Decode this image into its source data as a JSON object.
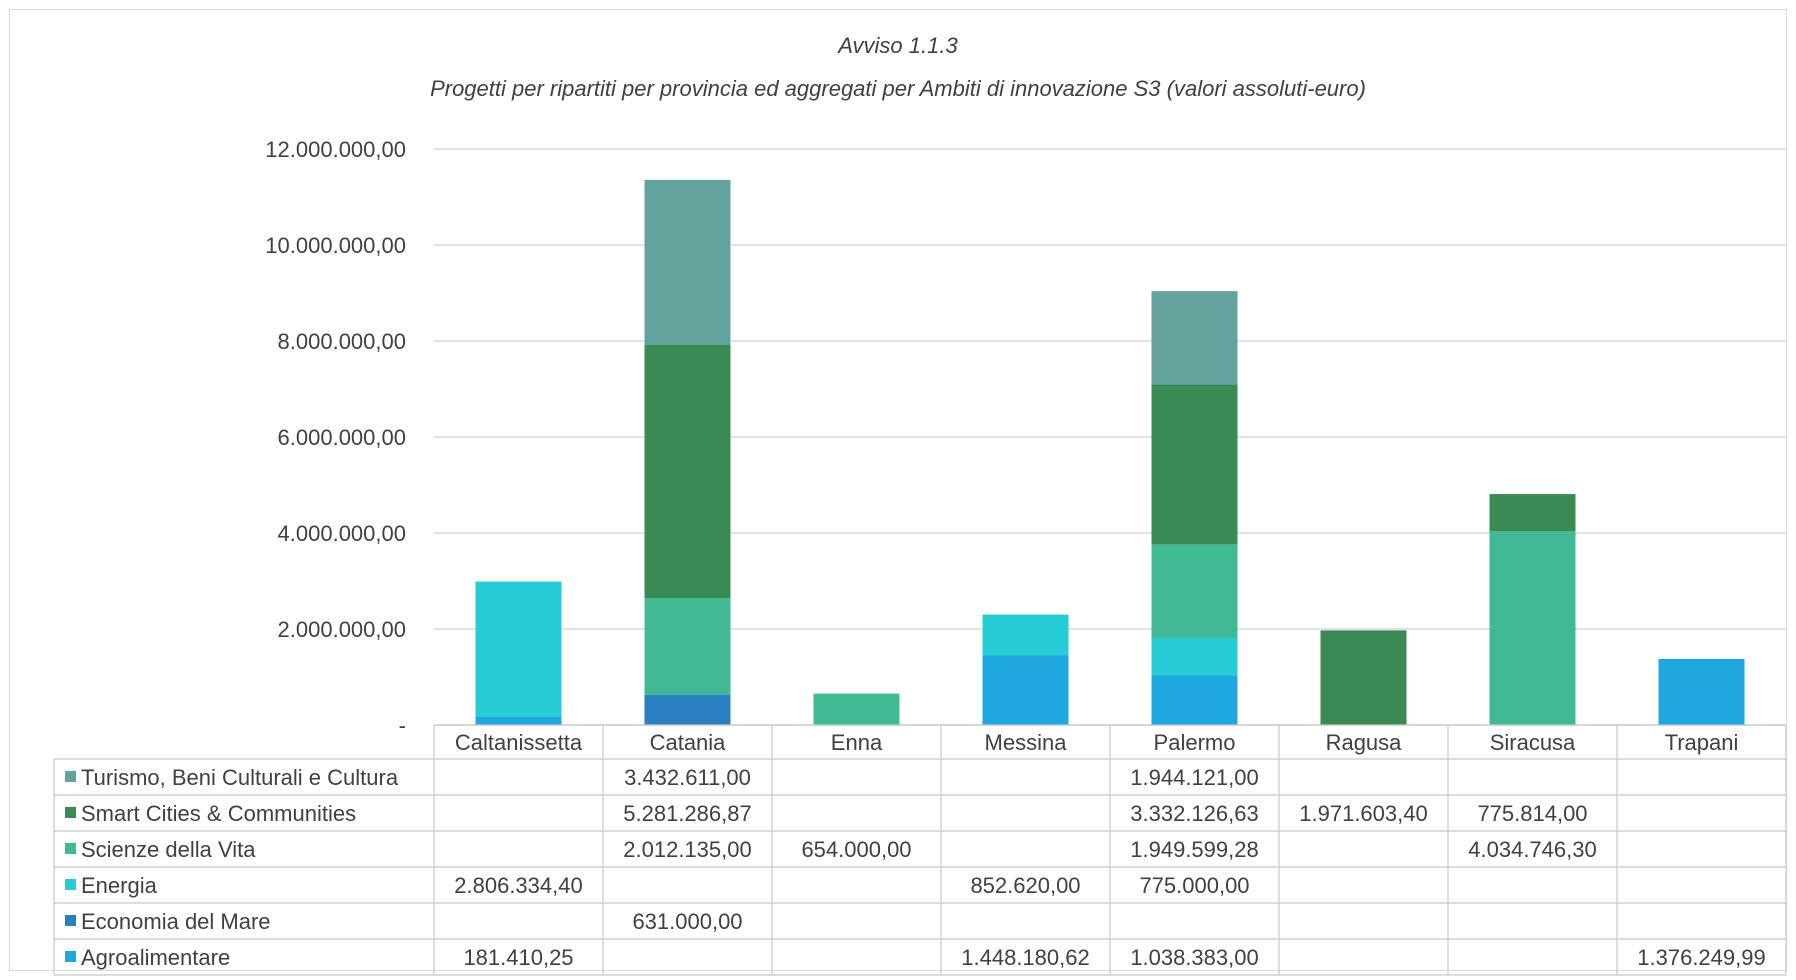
{
  "chart_data": {
    "type": "bar",
    "stacked": true,
    "title": "Avviso 1.1.3",
    "subtitle": "Progetti per ripartiti per provincia ed aggregati per Ambiti di innovazione S3 (valori assoluti-euro)",
    "xlabel": "",
    "ylabel": "",
    "ylim": [
      0,
      12000000
    ],
    "y_ticks": [
      "-",
      "2.000.000,00",
      "4.000.000,00",
      "6.000.000,00",
      "8.000.000,00",
      "10.000.000,00",
      "12.000.000,00"
    ],
    "grid": true,
    "legend_placement": "data-table",
    "categories": [
      "Caltanissetta",
      "Catania",
      "Enna",
      "Messina",
      "Palermo",
      "Ragusa",
      "Siracusa",
      "Trapani"
    ],
    "series": [
      {
        "name": "Agroalimentare",
        "color": "#1fa8e0",
        "values": [
          181410.25,
          null,
          null,
          1448180.62,
          1038383.0,
          null,
          null,
          1376249.99
        ],
        "labels": [
          "181.410,25",
          "",
          "",
          "1.448.180,62",
          "1.038.383,00",
          "",
          "",
          "1.376.249,99"
        ]
      },
      {
        "name": "Economia del Mare",
        "color": "#2a7fc1",
        "values": [
          null,
          631000.0,
          null,
          null,
          null,
          null,
          null,
          null
        ],
        "labels": [
          "",
          "631.000,00",
          "",
          "",
          "",
          "",
          "",
          ""
        ]
      },
      {
        "name": "Energia",
        "color": "#26ccd6",
        "values": [
          2806334.4,
          null,
          null,
          852620.0,
          775000.0,
          null,
          null,
          null
        ],
        "labels": [
          "2.806.334,40",
          "",
          "",
          "852.620,00",
          "775.000,00",
          "",
          "",
          ""
        ]
      },
      {
        "name": "Scienze della Vita",
        "color": "#41b995",
        "values": [
          null,
          2012135.0,
          654000.0,
          null,
          1949599.28,
          null,
          4034746.3,
          null
        ],
        "labels": [
          "",
          "2.012.135,00",
          "654.000,00",
          "",
          "1.949.599,28",
          "",
          "4.034.746,30",
          ""
        ]
      },
      {
        "name": "Smart Cities & Communities",
        "color": "#3a8a53",
        "values": [
          null,
          5281286.87,
          null,
          null,
          3332126.63,
          1971603.4,
          775814.0,
          null
        ],
        "labels": [
          "",
          "5.281.286,87",
          "",
          "",
          "3.332.126,63",
          "1.971.603,40",
          "775.814,00",
          ""
        ]
      },
      {
        "name": "Turismo, Beni Culturali e Cultura",
        "color": "#63a39e",
        "values": [
          null,
          3432611.0,
          null,
          null,
          1944121.0,
          null,
          null,
          null
        ],
        "labels": [
          "",
          "3.432.611,00",
          "",
          "",
          "1.944.121,00",
          "",
          "",
          ""
        ]
      }
    ]
  }
}
